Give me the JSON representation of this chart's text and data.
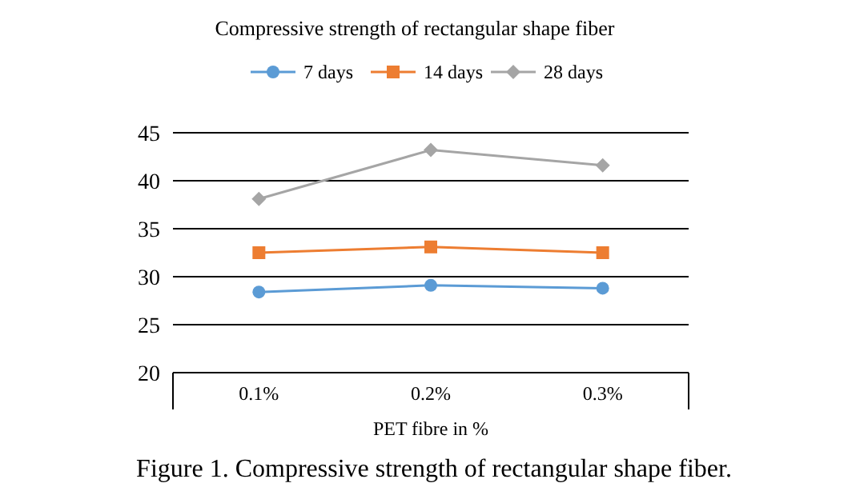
{
  "chart_data": {
    "type": "line",
    "title": "Compressive strength of rectangular shape fiber",
    "xlabel": "PET fibre in %",
    "categories": [
      "0.1%",
      "0.2%",
      "0.3%"
    ],
    "series": [
      {
        "name": "7 days",
        "color": "#5b9bd5",
        "marker": "circle",
        "values": [
          28.4,
          29.1,
          28.8
        ]
      },
      {
        "name": "14 days",
        "color": "#ed7d31",
        "marker": "square",
        "values": [
          32.5,
          33.1,
          32.5
        ]
      },
      {
        "name": "28 days",
        "color": "#a5a5a5",
        "marker": "diamond",
        "values": [
          38.1,
          43.2,
          41.6
        ]
      }
    ],
    "ylim": [
      20,
      45
    ],
    "yticks": [
      20,
      25,
      30,
      35,
      40,
      45
    ],
    "grid": "y",
    "legend": "top",
    "annotations": [
      "Figure 1. Compressive strength of rectangular shape fiber."
    ]
  }
}
